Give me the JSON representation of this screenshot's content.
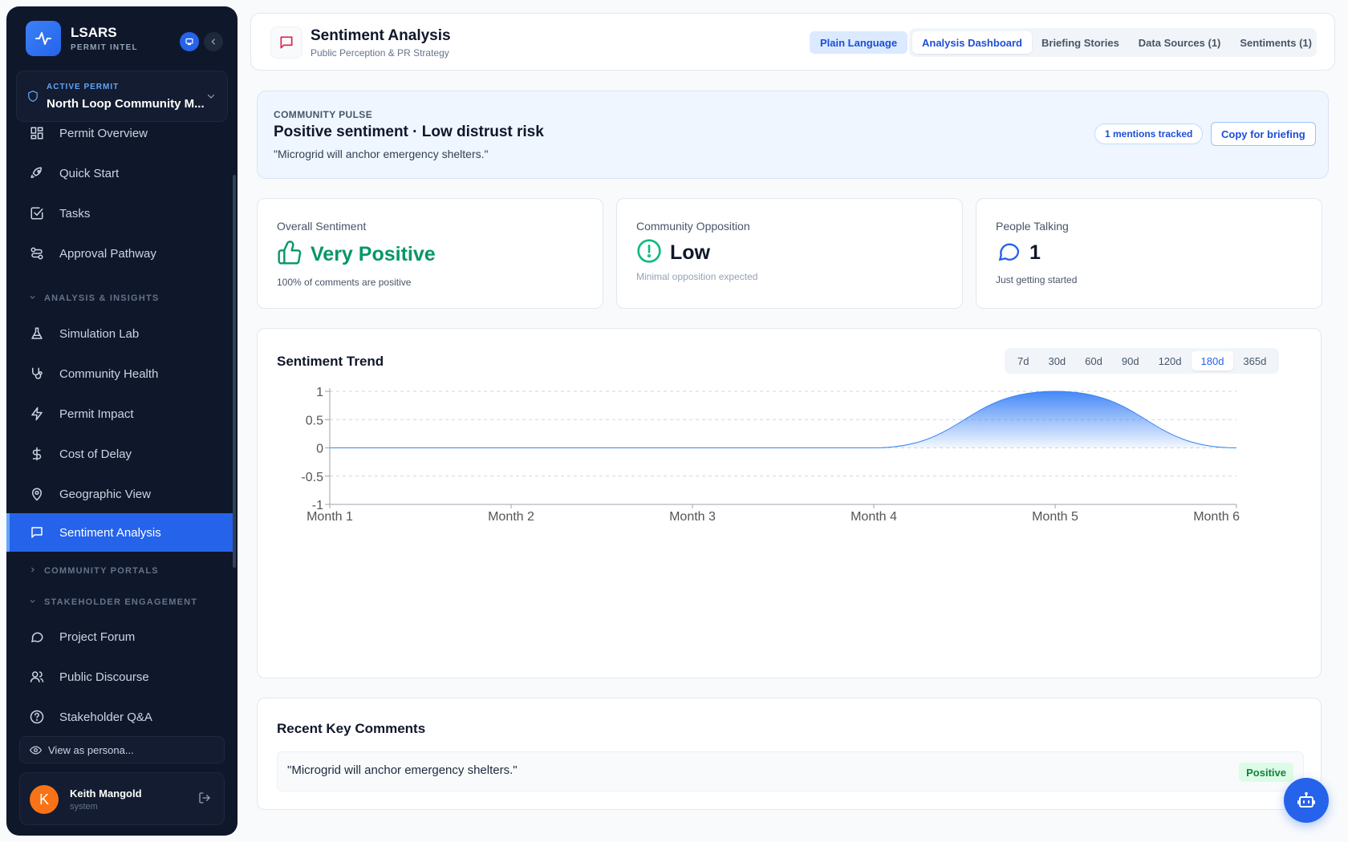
{
  "brand": {
    "name": "LSARS",
    "subtitle": "PERMIT INTEL"
  },
  "permit": {
    "label": "ACTIVE PERMIT",
    "name": "North Loop Community M..."
  },
  "nav": {
    "items": [
      {
        "label": "Permit Overview",
        "icon": "grid-icon"
      },
      {
        "label": "Quick Start",
        "icon": "rocket-icon"
      },
      {
        "label": "Tasks",
        "icon": "checkbox-icon"
      },
      {
        "label": "Approval Pathway",
        "icon": "route-icon"
      },
      {
        "label": "Simulation Lab",
        "icon": "flask-icon"
      },
      {
        "label": "Community Health",
        "icon": "stethoscope-icon"
      },
      {
        "label": "Permit Impact",
        "icon": "lightning-icon"
      },
      {
        "label": "Cost of Delay",
        "icon": "dollar-icon"
      },
      {
        "label": "Geographic View",
        "icon": "map-pin-icon"
      },
      {
        "label": "Sentiment Analysis",
        "icon": "message-icon"
      },
      {
        "label": "Project Forum",
        "icon": "chat-bubble-icon"
      },
      {
        "label": "Public Discourse",
        "icon": "users-icon"
      },
      {
        "label": "Stakeholder Q&A",
        "icon": "help-circle-icon"
      }
    ],
    "sections": {
      "analysis": "ANALYSIS & INSIGHTS",
      "portals": "COMMUNITY PORTALS",
      "engagement": "STAKEHOLDER ENGAGEMENT"
    },
    "active": "Sentiment Analysis"
  },
  "persona": {
    "label": "View as persona..."
  },
  "user": {
    "initial": "K",
    "name": "Keith Mangold",
    "role": "system"
  },
  "header": {
    "title": "Sentiment Analysis",
    "subtitle": "Public Perception & PR Strategy",
    "plain_language": "Plain Language",
    "tabs": [
      "Analysis Dashboard",
      "Briefing Stories",
      "Data Sources (1)",
      "Sentiments (1)"
    ],
    "active_tab": "Analysis Dashboard"
  },
  "pulse": {
    "label": "COMMUNITY PULSE",
    "title": "Positive sentiment · Low distrust risk",
    "quote": "\"Microgrid will anchor emergency shelters.\"",
    "mentions": "1 mentions tracked",
    "copy": "Copy for briefing"
  },
  "stats": {
    "sentiment": {
      "label": "Overall Sentiment",
      "value": "Very Positive",
      "note": "100% of comments are positive",
      "color": "#059669"
    },
    "opposition": {
      "label": "Community Opposition",
      "value": "Low",
      "note": "Minimal opposition expected",
      "color": "#10b981"
    },
    "talking": {
      "label": "People Talking",
      "value": "1",
      "note": "Just getting started",
      "color": "#2563eb"
    }
  },
  "trend": {
    "ranges": [
      "7d",
      "30d",
      "60d",
      "90d",
      "120d",
      "180d",
      "365d"
    ],
    "active_range": "180d"
  },
  "chart_data": {
    "type": "area",
    "title": "Sentiment Trend",
    "x": [
      "Month 1",
      "Month 2",
      "Month 3",
      "Month 4",
      "Month 5",
      "Month 6"
    ],
    "series": [
      {
        "values": [
          0,
          0,
          0,
          0,
          1,
          0
        ]
      }
    ],
    "ylim": [
      -1,
      1
    ],
    "yticks": [
      "1",
      "0.5",
      "0",
      "-0.5",
      "-1"
    ],
    "grid": true,
    "color": "#3b82f6"
  },
  "comments": {
    "title": "Recent Key Comments",
    "items": [
      {
        "text": "\"Microgrid will anchor emergency shelters.\"",
        "badge": "Positive"
      }
    ]
  }
}
